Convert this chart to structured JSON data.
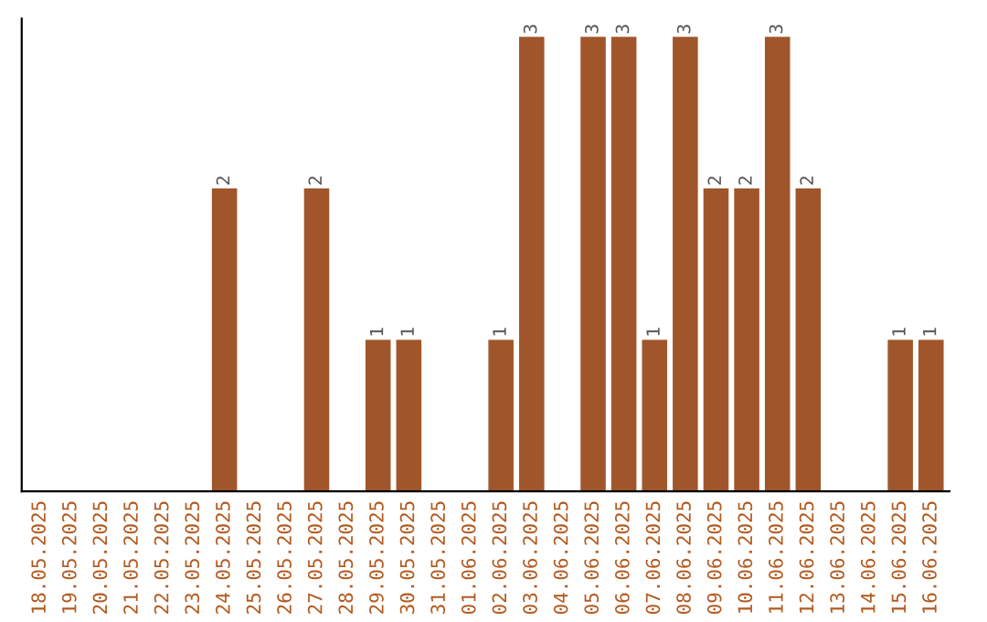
{
  "chart_data": {
    "type": "bar",
    "categories": [
      "18.05.2025",
      "19.05.2025",
      "20.05.2025",
      "21.05.2025",
      "22.05.2025",
      "23.05.2025",
      "24.05.2025",
      "25.05.2025",
      "26.05.2025",
      "27.05.2025",
      "28.05.2025",
      "29.05.2025",
      "30.05.2025",
      "31.05.2025",
      "01.06.2025",
      "02.06.2025",
      "03.06.2025",
      "04.06.2025",
      "05.06.2025",
      "06.06.2025",
      "07.06.2025",
      "08.06.2025",
      "09.06.2025",
      "10.06.2025",
      "11.06.2025",
      "12.06.2025",
      "13.06.2025",
      "14.06.2025",
      "15.06.2025",
      "16.06.2025"
    ],
    "values": [
      0,
      0,
      0,
      0,
      0,
      0,
      2,
      0,
      0,
      2,
      0,
      1,
      1,
      0,
      0,
      1,
      3,
      0,
      3,
      3,
      1,
      3,
      2,
      2,
      3,
      2,
      0,
      0,
      1,
      1
    ],
    "value_labels": [
      null,
      null,
      null,
      null,
      null,
      null,
      "2",
      null,
      null,
      "2",
      null,
      "1",
      "1",
      null,
      null,
      "1",
      "3",
      null,
      "3",
      "3",
      "1",
      "3",
      "2",
      "2",
      "3",
      "2",
      null,
      null,
      "1",
      "1"
    ],
    "color": "#a0562a",
    "tick_labels": "x",
    "grid": false,
    "legend": false
  }
}
